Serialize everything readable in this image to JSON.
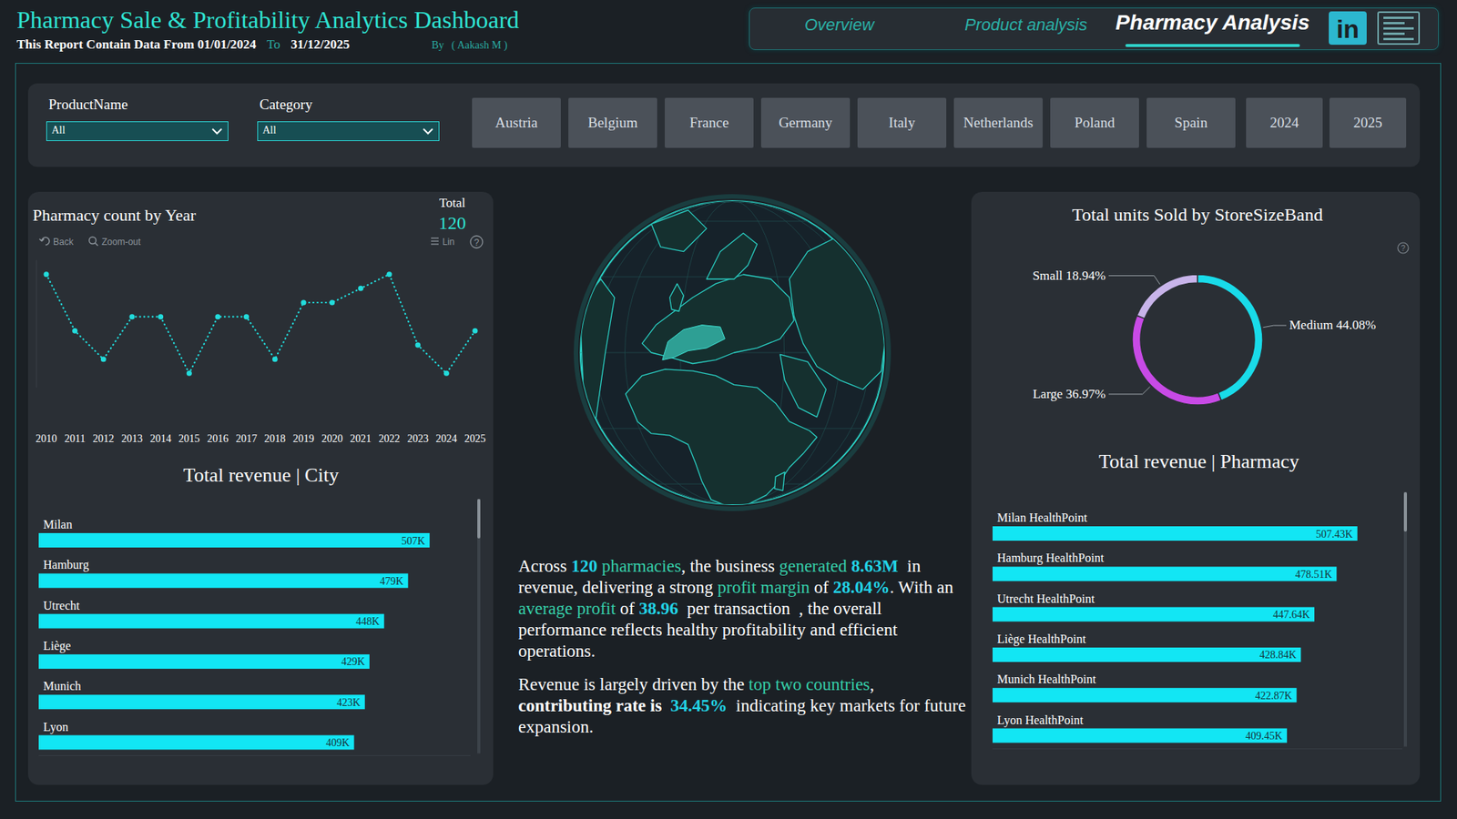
{
  "header": {
    "title": "Pharmacy Sale & Profitability Analytics Dashboard",
    "subtitle": "This Report Contain Data From 01/01/2024",
    "to": "To",
    "date_to": "31/12/2025",
    "by": "By",
    "author": "( Aakash M )"
  },
  "nav": {
    "tabs": [
      {
        "label": "Overview",
        "active": false
      },
      {
        "label": "Product analysis",
        "active": false
      },
      {
        "label": "Pharmacy Analysis",
        "active": true
      }
    ],
    "linkedin": "in"
  },
  "filters": {
    "dropdowns": [
      {
        "label": "ProductName",
        "value": "All"
      },
      {
        "label": "Category",
        "value": "All"
      }
    ],
    "countries": [
      "Austria",
      "Belgium",
      "France",
      "Germany",
      "Italy",
      "Netherlands",
      "Poland",
      "Spain"
    ],
    "years": [
      "2024",
      "2025"
    ]
  },
  "chart_data": [
    {
      "type": "line",
      "title": "Pharmacy count by Year",
      "total_label": "Total",
      "total": 120,
      "controls": [
        "Back",
        "Zoom-out"
      ],
      "toggle": "Lin",
      "help": "?",
      "categories": [
        "2010",
        "2011",
        "2012",
        "2013",
        "2014",
        "2015",
        "2016",
        "2017",
        "2018",
        "2019",
        "2020",
        "2021",
        "2022",
        "2023",
        "2024",
        "2025"
      ],
      "values": [
        11,
        7,
        5,
        8,
        8,
        4,
        8,
        8,
        5,
        9,
        9,
        10,
        11,
        6,
        4,
        7
      ],
      "ylim": [
        3,
        12
      ],
      "tick_labels": "x",
      "marker": "circle",
      "line_style": "dotted",
      "color": "#22dcdc"
    },
    {
      "type": "donut",
      "title": "Total units Sold by StoreSizeBand",
      "help": "?",
      "categories": [
        "Medium",
        "Large",
        "Small"
      ],
      "values": [
        44.08,
        36.97,
        18.94
      ],
      "value_labels": [
        "44.08%",
        "36.97%",
        "18.94%"
      ],
      "colors": [
        "#19dbe9",
        "#c84ae6",
        "#c8b4ea"
      ],
      "data_labels": true
    },
    {
      "type": "bar",
      "orientation": "horizontal",
      "title": "Total revenue | City",
      "categories": [
        "Milan",
        "Hamburg",
        "Utrecht",
        "Liège",
        "Munich",
        "Lyon"
      ],
      "values": [
        507000,
        479000,
        448000,
        429000,
        423000,
        409000
      ],
      "value_labels": [
        "507K",
        "479K",
        "448K",
        "429K",
        "423K",
        "409K"
      ],
      "xlim": [
        0,
        560000
      ],
      "tick_labels": false,
      "data_labels": true,
      "color": "#12e6f4"
    },
    {
      "type": "bar",
      "orientation": "horizontal",
      "title": "Total revenue | Pharmacy",
      "categories": [
        "Milan HealthPoint",
        "Hamburg HealthPoint",
        "Utrecht HealthPoint",
        "Liège HealthPoint",
        "Munich HealthPoint",
        "Lyon HealthPoint"
      ],
      "values": [
        507430,
        478510,
        447640,
        428840,
        422870,
        409450
      ],
      "value_labels": [
        "507.43K",
        "478.51K",
        "447.64K",
        "428.84K",
        "422.87K",
        "409.45K"
      ],
      "xlim": [
        0,
        570000
      ],
      "tick_labels": false,
      "data_labels": true,
      "color": "#12e6f4"
    }
  ],
  "summary": {
    "paragraphs": [
      [
        {
          "text": "Across ",
          "style": "plain"
        },
        {
          "text": "120",
          "style": "value"
        },
        {
          "text": " pharmacies",
          "style": "accent"
        },
        {
          "text": ", the business ",
          "style": "plain"
        },
        {
          "text": "generated",
          "style": "accent"
        },
        {
          "text": " 8.63M",
          "style": "value"
        },
        {
          "text": "  in revenue, delivering a strong ",
          "style": "plain"
        },
        {
          "text": "profit margin",
          "style": "accent"
        },
        {
          "text": " of ",
          "style": "plain"
        },
        {
          "text": "28.04%",
          "style": "value"
        },
        {
          "text": ". With an ",
          "style": "plain"
        },
        {
          "text": "average profit",
          "style": "accent"
        },
        {
          "text": " of ",
          "style": "plain"
        },
        {
          "text": "38.96",
          "style": "value"
        },
        {
          "text": "  per transaction  , the overall performance reflects healthy profitability and efficient operations.",
          "style": "plain"
        }
      ],
      [
        {
          "text": "Revenue is largely driven by the ",
          "style": "plain"
        },
        {
          "text": "top two countries",
          "style": "accent"
        },
        {
          "text": ",",
          "style": "plain"
        },
        {
          "text": " contributing rate is",
          "style": "bold"
        },
        {
          "text": "  34.45%",
          "style": "value"
        },
        {
          "text": "  indicating key markets for future expansion.",
          "style": "plain"
        }
      ]
    ]
  }
}
